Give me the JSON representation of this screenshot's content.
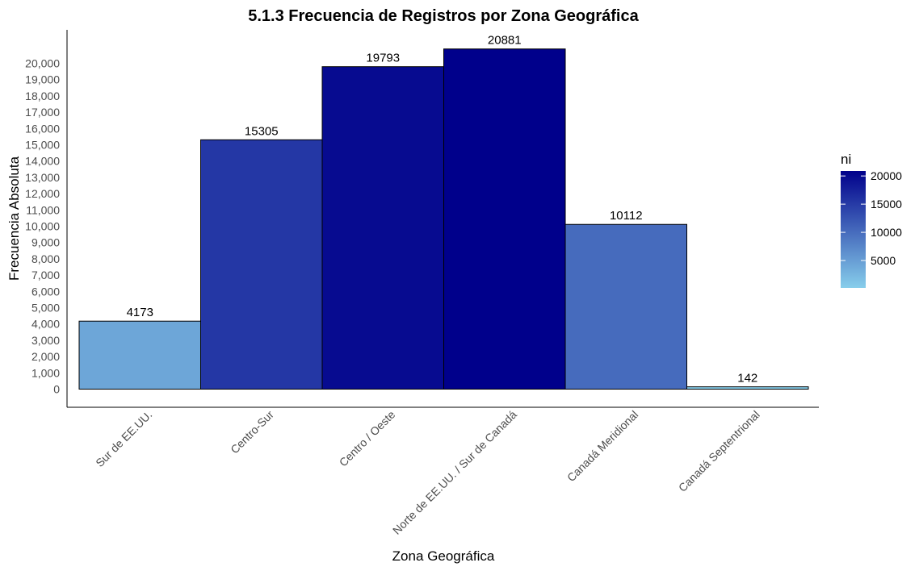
{
  "chart_data": {
    "type": "bar",
    "title": "5.1.3 Frecuencia de Registros por Zona Geográfica",
    "xlabel": "Zona Geográfica",
    "ylabel": "Frecuencia Absoluta",
    "categories": [
      "Sur de EE.UU.",
      "Centro-Sur",
      "Centro / Oeste",
      "Norte de EE.UU. / Sur de Canadá",
      "Canadá Meridional",
      "Canadá Septentrional"
    ],
    "values": [
      4173,
      15305,
      19793,
      20881,
      10112,
      142
    ],
    "value_labels": [
      "4173",
      "15305",
      "19793",
      "20881",
      "10112",
      "142"
    ],
    "ylim": [
      0,
      20881
    ],
    "yticks": [
      0,
      1000,
      2000,
      3000,
      4000,
      5000,
      6000,
      7000,
      8000,
      9000,
      10000,
      11000,
      12000,
      13000,
      14000,
      15000,
      16000,
      17000,
      18000,
      19000,
      20000
    ],
    "ytick_labels": [
      "0",
      "1,000",
      "2,000",
      "3,000",
      "4,000",
      "5,000",
      "6,000",
      "7,000",
      "8,000",
      "9,000",
      "10,000",
      "11,000",
      "12,000",
      "13,000",
      "14,000",
      "15,000",
      "16,000",
      "17,000",
      "18,000",
      "19,000",
      "20,000"
    ],
    "grid": false,
    "legend": {
      "title": "ni",
      "placement": "right",
      "type": "colorbar",
      "ticks": [
        5000,
        10000,
        15000,
        20000
      ],
      "tick_labels": [
        "5000",
        "10000",
        "15000",
        "20000"
      ],
      "range": [
        142,
        20881
      ],
      "color_low": "#87ceeb",
      "color_high": "#00008b"
    }
  }
}
